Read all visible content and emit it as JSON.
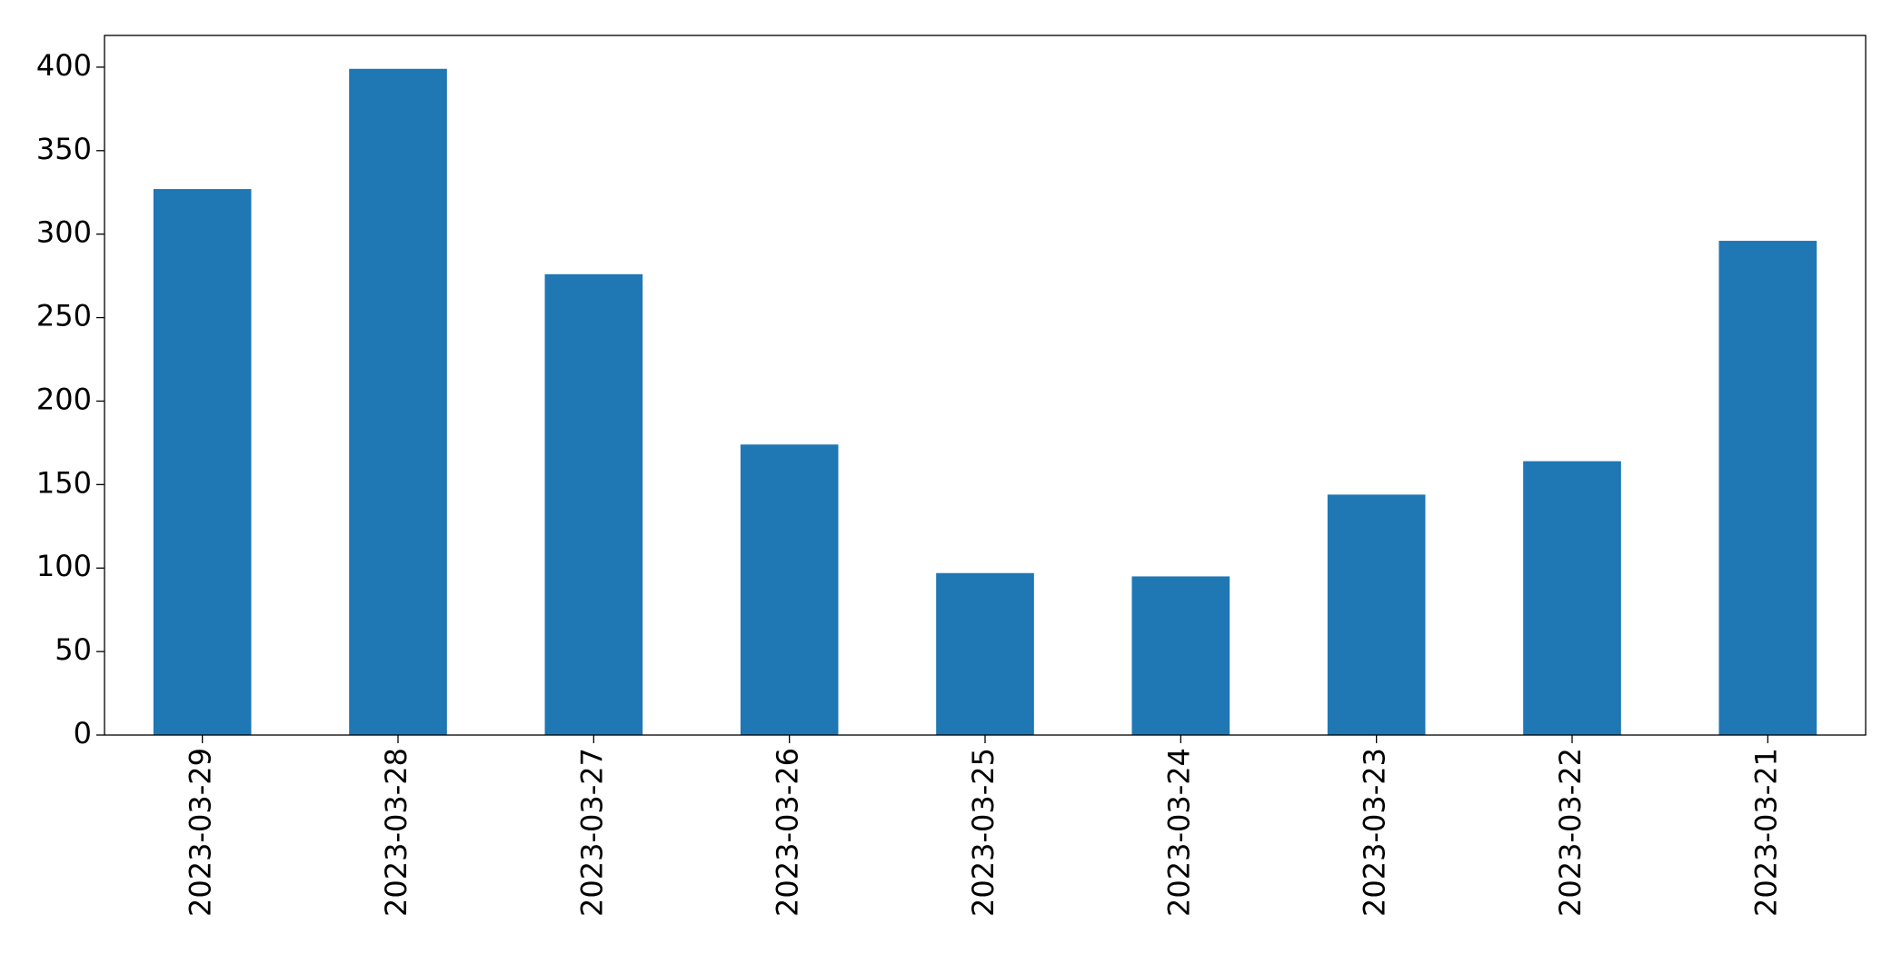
{
  "chart_data": {
    "type": "bar",
    "categories": [
      "2023-03-29",
      "2023-03-28",
      "2023-03-27",
      "2023-03-26",
      "2023-03-25",
      "2023-03-24",
      "2023-03-23",
      "2023-03-22",
      "2023-03-21"
    ],
    "values": [
      327,
      399,
      276,
      174,
      97,
      95,
      144,
      164,
      296
    ],
    "color": "#1f77b4",
    "ylim": [
      0,
      419
    ],
    "yticks": [
      0,
      50,
      100,
      150,
      200,
      250,
      300,
      350,
      400
    ],
    "grid": false
  }
}
